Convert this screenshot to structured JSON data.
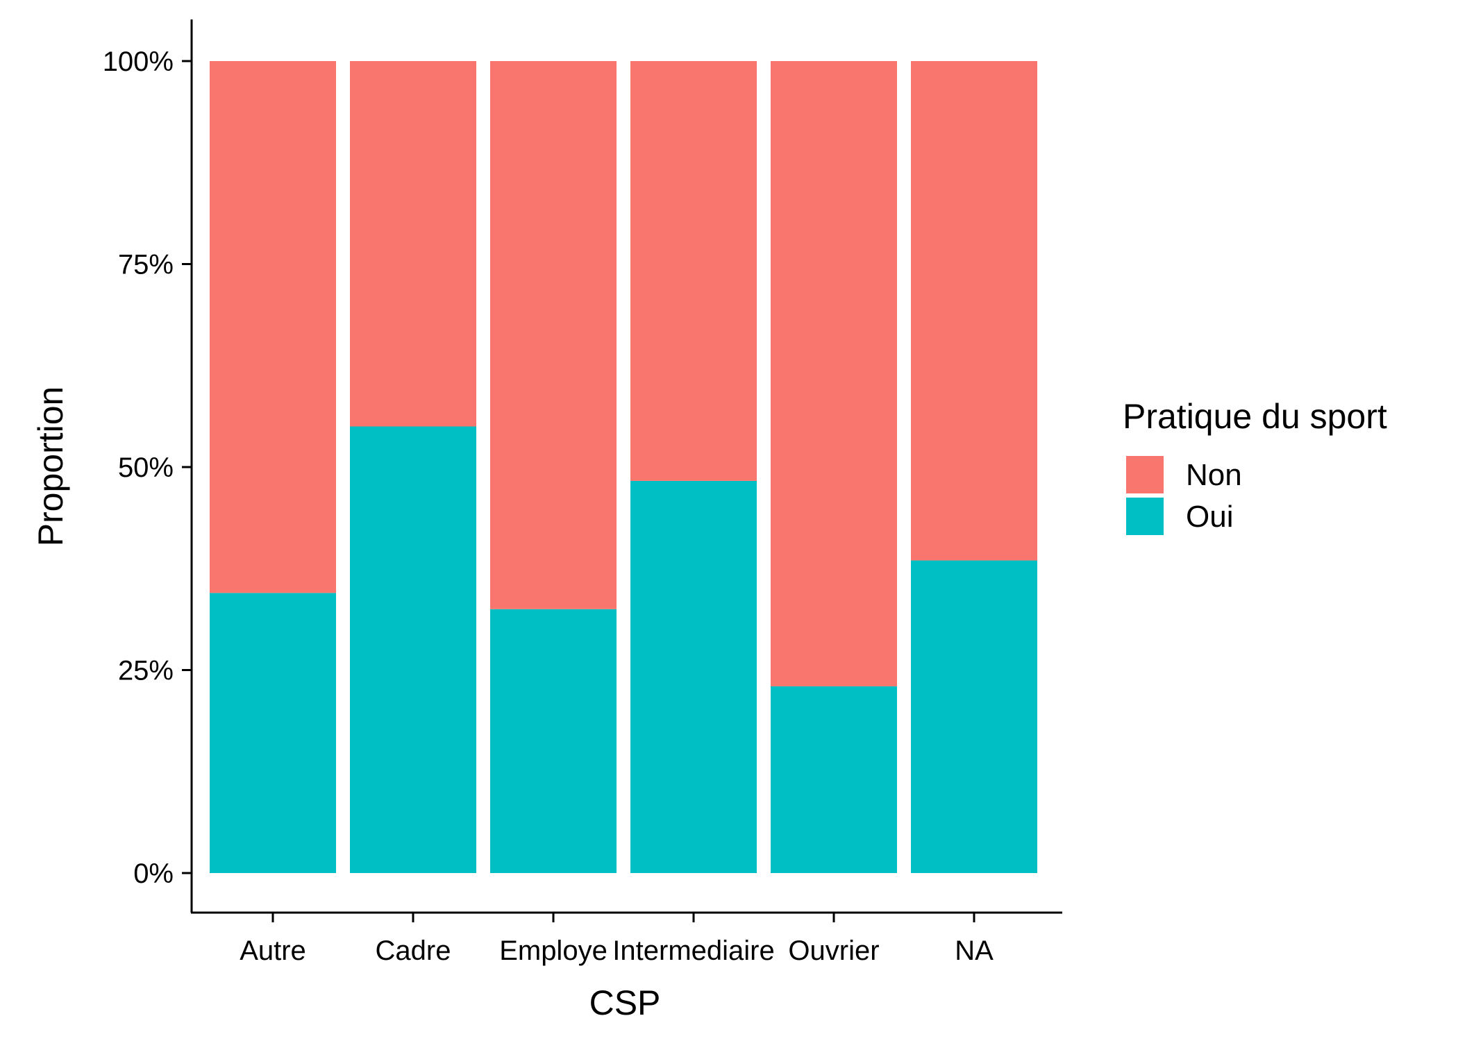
{
  "chart_data": {
    "type": "bar",
    "stacked": true,
    "categories": [
      "Autre",
      "Cadre",
      "Employe",
      "Intermediaire",
      "Ouvrier",
      "NA"
    ],
    "series": [
      {
        "name": "Oui",
        "color": "#00BFC4",
        "values": [
          0.345,
          0.55,
          0.325,
          0.483,
          0.23,
          0.385
        ]
      },
      {
        "name": "Non",
        "color": "#F8766D",
        "values": [
          0.655,
          0.45,
          0.675,
          0.517,
          0.77,
          0.615
        ]
      }
    ],
    "xlabel": "CSP",
    "ylabel": "Proportion",
    "ylim": [
      0,
      1
    ],
    "yticks": [
      {
        "value": 0,
        "label": "0%"
      },
      {
        "value": 0.25,
        "label": "25%"
      },
      {
        "value": 0.5,
        "label": "50%"
      },
      {
        "value": 0.75,
        "label": "75%"
      },
      {
        "value": 1,
        "label": "100%"
      }
    ],
    "legend": {
      "title": "Pratique du sport",
      "placement": "right",
      "items": [
        {
          "label": "Non",
          "color": "#F8766D"
        },
        {
          "label": "Oui",
          "color": "#00BFC4"
        }
      ]
    },
    "grid": false
  }
}
